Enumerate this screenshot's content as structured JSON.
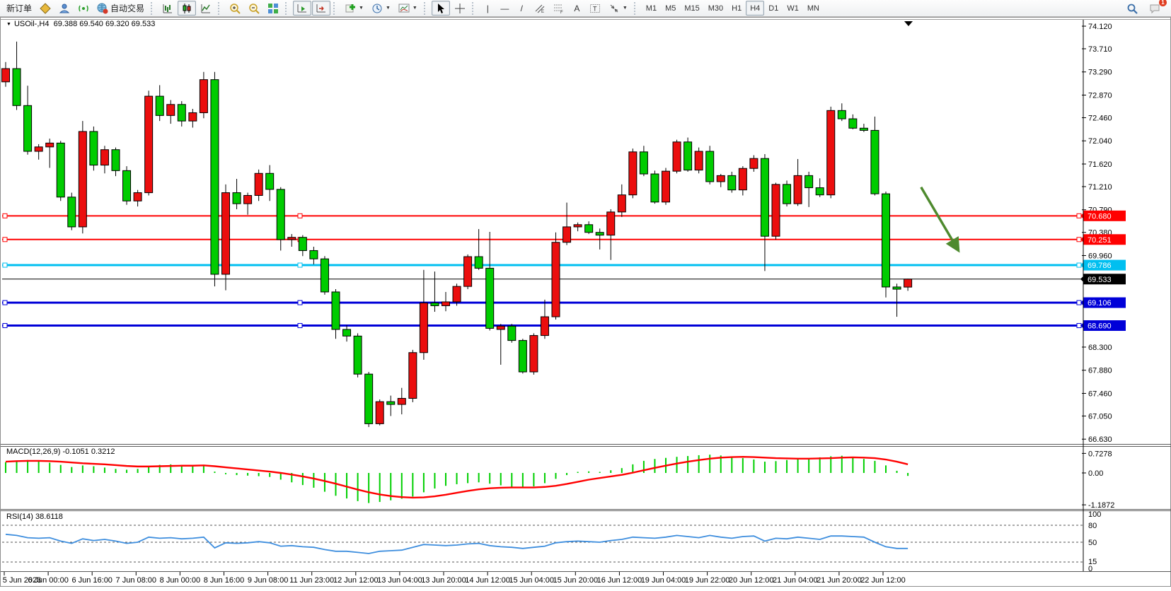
{
  "toolbar": {
    "new_order_label": "新订单",
    "auto_trading_label": "自动交易",
    "timeframes": [
      "M1",
      "M5",
      "M15",
      "M30",
      "H1",
      "H4",
      "D1",
      "W1",
      "MN"
    ],
    "active_timeframe": "H4",
    "notification_badge": "1",
    "tool_glyphs": {
      "vertical_line": "|",
      "horizontal_line": "—",
      "trendline": "/",
      "channel": "E",
      "fibonacci": "F",
      "text_label": "A",
      "text_box": "T"
    },
    "icons": [
      "market-watch",
      "navigator",
      "signal",
      "autotrading-globe",
      "bar-chart",
      "candlestick-chart",
      "line-chart",
      "zoom-in",
      "zoom-out",
      "tile-windows",
      "auto-scroll",
      "chart-shift",
      "add-indicator",
      "period-clock",
      "chart-template",
      "cursor",
      "crosshair",
      "vertical-line",
      "horizontal-line",
      "trendline",
      "equidistant-channel",
      "fibonacci",
      "text-label",
      "text-box",
      "arrows",
      "search",
      "chat"
    ]
  },
  "chart": {
    "dropdown_glyph": "▼",
    "symbol_period": "USOil-,H4",
    "ohlc_text": "69.388 69.540 69.320 69.533"
  },
  "price_axis": {
    "labels": [
      "74.120",
      "73.710",
      "73.290",
      "72.870",
      "72.460",
      "72.040",
      "71.620",
      "71.210",
      "70.790",
      "70.380",
      "69.960",
      "68.300",
      "67.880",
      "67.460",
      "67.050",
      "66.630"
    ]
  },
  "levels": [
    {
      "price": 70.68,
      "label": "70.680",
      "color": "#FF0000",
      "width": 2
    },
    {
      "price": 70.251,
      "label": "70.251",
      "color": "#FF0000",
      "width": 2
    },
    {
      "price": 69.786,
      "label": "69.786",
      "color": "#00BFF0",
      "width": 3
    },
    {
      "price": 69.106,
      "label": "69.106",
      "color": "#0000D8",
      "width": 3
    },
    {
      "price": 68.69,
      "label": "68.690",
      "color": "#0000D8",
      "width": 3
    }
  ],
  "current_price": {
    "price": 69.533,
    "label": "69.533",
    "color": "#000000"
  },
  "time_axis": {
    "labels": [
      "5 Jun 2023",
      "6 Jun 00:00",
      "6 Jun 16:00",
      "7 Jun 08:00",
      "8 Jun 00:00",
      "8 Jun 16:00",
      "9 Jun 08:00",
      "11 Jun 23:00",
      "12 Jun 12:00",
      "13 Jun 04:00",
      "13 Jun 20:00",
      "14 Jun 12:00",
      "15 Jun 04:00",
      "15 Jun 20:00",
      "16 Jun 12:00",
      "19 Jun 04:00",
      "19 Jun 22:00",
      "20 Jun 12:00",
      "21 Jun 04:00",
      "21 Jun 20:00",
      "22 Jun 12:00"
    ]
  },
  "indicators": {
    "macd": {
      "name": "MACD(12,26,9)",
      "values_text": "-0.1051 0.3212",
      "axis_labels": [
        "0.7278",
        "0.00",
        "-1.1872"
      ],
      "axis_values": [
        0.7278,
        0.0,
        -1.1872
      ]
    },
    "rsi": {
      "name": "RSI(14)",
      "value_text": "38.6118",
      "axis_labels": [
        "100",
        "80",
        "50",
        "15",
        "0"
      ],
      "level_lines": [
        80,
        50,
        15
      ]
    }
  },
  "chart_data": {
    "type": "candlestick",
    "symbol": "USOil-",
    "timeframe": "H4",
    "title": "USOil-,H4",
    "current_bar": {
      "open": 69.388,
      "high": 69.54,
      "low": 69.32,
      "close": 69.533
    },
    "ylim": [
      66.54,
      74.24
    ],
    "colors": {
      "bull": "#EB0E0E",
      "bear": "#00CC00",
      "wick": "#000000",
      "macd_histogram": "#00CF00",
      "macd_signal": "#FF0000",
      "rsi_line": "#3E8EDE",
      "arrow": "#4E8A2E"
    },
    "bars": [
      [
        73.11,
        73.47,
        73.02,
        73.35
      ],
      [
        73.35,
        73.84,
        72.6,
        72.68
      ],
      [
        72.68,
        73.04,
        71.79,
        71.85
      ],
      [
        71.85,
        71.98,
        71.7,
        71.93
      ],
      [
        71.93,
        72.08,
        71.55,
        72.0
      ],
      [
        72.0,
        72.04,
        70.95,
        71.02
      ],
      [
        71.02,
        71.1,
        70.42,
        70.48
      ],
      [
        70.48,
        72.4,
        70.36,
        72.21
      ],
      [
        72.21,
        72.3,
        71.5,
        71.6
      ],
      [
        71.6,
        71.95,
        71.45,
        71.88
      ],
      [
        71.88,
        71.92,
        71.4,
        71.5
      ],
      [
        71.5,
        71.58,
        70.88,
        70.95
      ],
      [
        70.95,
        71.15,
        70.85,
        71.1
      ],
      [
        71.1,
        72.95,
        71.05,
        72.85
      ],
      [
        72.85,
        73.05,
        72.4,
        72.5
      ],
      [
        72.5,
        72.78,
        72.35,
        72.7
      ],
      [
        72.7,
        72.76,
        72.3,
        72.4
      ],
      [
        72.4,
        72.62,
        72.28,
        72.55
      ],
      [
        72.55,
        73.29,
        72.45,
        73.15
      ],
      [
        73.15,
        73.29,
        69.4,
        69.62
      ],
      [
        69.62,
        71.25,
        69.33,
        71.1
      ],
      [
        71.1,
        71.35,
        70.8,
        70.9
      ],
      [
        70.9,
        71.1,
        70.7,
        71.05
      ],
      [
        71.05,
        71.52,
        70.95,
        71.45
      ],
      [
        71.45,
        71.6,
        70.95,
        71.16
      ],
      [
        71.16,
        71.2,
        70.05,
        70.25
      ],
      [
        70.25,
        70.35,
        70.12,
        70.29
      ],
      [
        70.29,
        70.33,
        69.95,
        70.05
      ],
      [
        70.05,
        70.12,
        69.8,
        69.9
      ],
      [
        69.9,
        69.95,
        69.25,
        69.3
      ],
      [
        69.3,
        69.35,
        68.45,
        68.62
      ],
      [
        68.62,
        68.7,
        68.4,
        68.5
      ],
      [
        68.5,
        68.55,
        67.75,
        67.81
      ],
      [
        67.81,
        67.85,
        66.85,
        66.91
      ],
      [
        66.91,
        67.35,
        66.88,
        67.31
      ],
      [
        67.31,
        67.42,
        67.05,
        67.26
      ],
      [
        67.26,
        67.56,
        67.08,
        67.37
      ],
      [
        67.37,
        68.25,
        67.3,
        68.2
      ],
      [
        68.2,
        69.7,
        68.07,
        69.1
      ],
      [
        69.1,
        69.67,
        68.94,
        69.05
      ],
      [
        69.05,
        69.3,
        68.95,
        69.12
      ],
      [
        69.12,
        69.45,
        69.05,
        69.4
      ],
      [
        69.4,
        69.98,
        69.35,
        69.94
      ],
      [
        69.94,
        70.44,
        69.7,
        69.73
      ],
      [
        69.73,
        70.39,
        68.6,
        68.64
      ],
      [
        68.62,
        68.72,
        67.98,
        68.68
      ],
      [
        68.68,
        68.72,
        68.38,
        68.42
      ],
      [
        68.42,
        68.45,
        67.82,
        67.85
      ],
      [
        67.85,
        68.55,
        67.8,
        68.51
      ],
      [
        68.51,
        69.16,
        68.45,
        68.85
      ],
      [
        68.85,
        70.38,
        68.8,
        70.2
      ],
      [
        70.2,
        70.92,
        70.15,
        70.48
      ],
      [
        70.48,
        70.56,
        70.4,
        70.52
      ],
      [
        70.52,
        70.58,
        70.35,
        70.38
      ],
      [
        70.38,
        70.45,
        70.07,
        70.33
      ],
      [
        70.33,
        70.8,
        69.88,
        70.75
      ],
      [
        70.75,
        71.25,
        70.66,
        71.06
      ],
      [
        71.06,
        71.9,
        71.0,
        71.84
      ],
      [
        71.84,
        71.95,
        71.4,
        71.44
      ],
      [
        71.44,
        71.5,
        70.9,
        70.93
      ],
      [
        70.93,
        71.55,
        70.88,
        71.49
      ],
      [
        71.49,
        72.06,
        71.45,
        72.02
      ],
      [
        72.02,
        72.1,
        71.48,
        71.51
      ],
      [
        71.51,
        71.92,
        71.45,
        71.85
      ],
      [
        71.85,
        71.95,
        71.25,
        71.3
      ],
      [
        71.3,
        71.44,
        71.2,
        71.41
      ],
      [
        71.41,
        71.48,
        71.1,
        71.15
      ],
      [
        71.15,
        71.58,
        71.05,
        71.54
      ],
      [
        71.54,
        71.78,
        71.48,
        71.72
      ],
      [
        71.72,
        71.8,
        69.68,
        70.31
      ],
      [
        70.31,
        71.28,
        70.25,
        71.25
      ],
      [
        71.25,
        71.32,
        70.85,
        70.9
      ],
      [
        70.9,
        71.71,
        70.86,
        71.41
      ],
      [
        71.41,
        71.48,
        70.84,
        71.19
      ],
      [
        71.19,
        71.36,
        71.02,
        71.06
      ],
      [
        71.06,
        72.66,
        71.0,
        72.59
      ],
      [
        72.59,
        72.72,
        72.4,
        72.44
      ],
      [
        72.44,
        72.52,
        72.25,
        72.27
      ],
      [
        72.27,
        72.35,
        72.2,
        72.23
      ],
      [
        72.23,
        72.48,
        71.05,
        71.08
      ],
      [
        71.08,
        71.12,
        69.2,
        69.39
      ],
      [
        69.39,
        69.45,
        68.85,
        69.35
      ],
      [
        69.388,
        69.54,
        69.32,
        69.533
      ]
    ],
    "macd_histogram": [
      0.4,
      0.45,
      0.48,
      0.42,
      0.38,
      0.3,
      0.22,
      0.28,
      0.25,
      0.2,
      0.15,
      0.12,
      0.15,
      0.25,
      0.3,
      0.32,
      0.3,
      0.28,
      0.3,
      0.05,
      -0.05,
      -0.08,
      -0.1,
      -0.12,
      -0.15,
      -0.25,
      -0.35,
      -0.45,
      -0.55,
      -0.7,
      -0.85,
      -0.95,
      -1.05,
      -1.12,
      -1.08,
      -1.02,
      -0.96,
      -0.88,
      -0.72,
      -0.58,
      -0.48,
      -0.42,
      -0.38,
      -0.35,
      -0.4,
      -0.46,
      -0.52,
      -0.55,
      -0.5,
      -0.38,
      -0.22,
      -0.08,
      0.04,
      0.06,
      0.04,
      0.1,
      0.18,
      0.32,
      0.45,
      0.52,
      0.56,
      0.6,
      0.63,
      0.66,
      0.68,
      0.65,
      0.6,
      0.55,
      0.5,
      0.42,
      0.44,
      0.48,
      0.52,
      0.55,
      0.58,
      0.62,
      0.64,
      0.6,
      0.52,
      0.45,
      0.28,
      0.08,
      -0.11
    ],
    "macd_signal": [
      0.42,
      0.44,
      0.45,
      0.45,
      0.44,
      0.42,
      0.39,
      0.36,
      0.34,
      0.32,
      0.29,
      0.26,
      0.24,
      0.24,
      0.25,
      0.26,
      0.27,
      0.27,
      0.28,
      0.25,
      0.21,
      0.17,
      0.13,
      0.09,
      0.05,
      0.0,
      -0.06,
      -0.13,
      -0.21,
      -0.3,
      -0.4,
      -0.51,
      -0.62,
      -0.72,
      -0.8,
      -0.86,
      -0.9,
      -0.92,
      -0.91,
      -0.87,
      -0.81,
      -0.74,
      -0.67,
      -0.61,
      -0.57,
      -0.55,
      -0.54,
      -0.54,
      -0.54,
      -0.52,
      -0.48,
      -0.41,
      -0.33,
      -0.25,
      -0.19,
      -0.13,
      -0.07,
      0.01,
      0.1,
      0.19,
      0.27,
      0.35,
      0.42,
      0.48,
      0.53,
      0.57,
      0.59,
      0.6,
      0.59,
      0.57,
      0.55,
      0.54,
      0.53,
      0.53,
      0.54,
      0.55,
      0.57,
      0.58,
      0.57,
      0.55,
      0.5,
      0.42,
      0.32
    ],
    "rsi": [
      64,
      62,
      58,
      57,
      58,
      52,
      48,
      56,
      53,
      55,
      52,
      48,
      50,
      59,
      57,
      58,
      56,
      57,
      59,
      40,
      49,
      48,
      49,
      51,
      49,
      43,
      44,
      42,
      41,
      37,
      34,
      34,
      32,
      30,
      34,
      35,
      36,
      41,
      46,
      45,
      44,
      45,
      47,
      48,
      44,
      42,
      41,
      39,
      41,
      43,
      49,
      51,
      52,
      51,
      50,
      53,
      55,
      59,
      58,
      57,
      59,
      62,
      60,
      58,
      62,
      59,
      57,
      60,
      61,
      52,
      57,
      56,
      59,
      57,
      55,
      61,
      61,
      60,
      59,
      50,
      42,
      39,
      39
    ],
    "annotations": [
      {
        "type": "arrow",
        "color": "#4E8A2E",
        "from": {
          "bar": 83.2,
          "price": 71.2
        },
        "to": {
          "bar": 86.6,
          "price": 70.05
        }
      }
    ]
  }
}
